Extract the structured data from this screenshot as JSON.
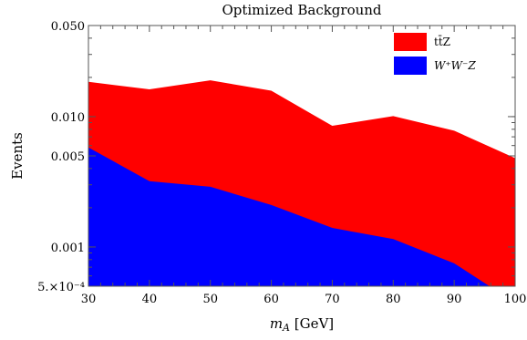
{
  "chart_data": {
    "type": "area",
    "title": "Optimized Background",
    "xlabel": "m_A [GeV]",
    "xlabel_main": "m",
    "xlabel_sub": "A",
    "xlabel_unit": " [GeV]",
    "ylabel": "Events",
    "y_scale": "log",
    "xlim": [
      30,
      100
    ],
    "ylim": [
      0.0005,
      0.05
    ],
    "x": [
      30,
      40,
      50,
      60,
      70,
      80,
      90,
      100
    ],
    "series": [
      {
        "name": "tt̄Z",
        "color": "#ff0000",
        "values": [
          0.0185,
          0.0162,
          0.019,
          0.0158,
          0.0085,
          0.0101,
          0.0078,
          0.0048
        ]
      },
      {
        "name": "W⁺W⁻Z",
        "color": "#0000ff",
        "x_values": [
          30,
          40,
          50,
          60,
          70,
          80,
          90,
          95.8
        ],
        "values": [
          0.0058,
          0.0032,
          0.0029,
          0.0021,
          0.0014,
          0.00115,
          0.00075,
          0.0005
        ]
      }
    ],
    "x_ticks": [
      "30",
      "40",
      "50",
      "60",
      "70",
      "80",
      "90",
      "100"
    ],
    "y_ticks": [
      {
        "value": 0.05,
        "label": "0.050"
      },
      {
        "value": 0.01,
        "label": "0.010"
      },
      {
        "value": 0.005,
        "label": "0.005"
      },
      {
        "value": 0.001,
        "label": "0.001"
      },
      {
        "value": 0.0005,
        "label": "5.×10⁻⁴"
      }
    ],
    "legend": {
      "placement": "top-right",
      "entries": [
        "tt̄Z",
        "W⁺W⁻Z"
      ]
    },
    "grid": false
  }
}
